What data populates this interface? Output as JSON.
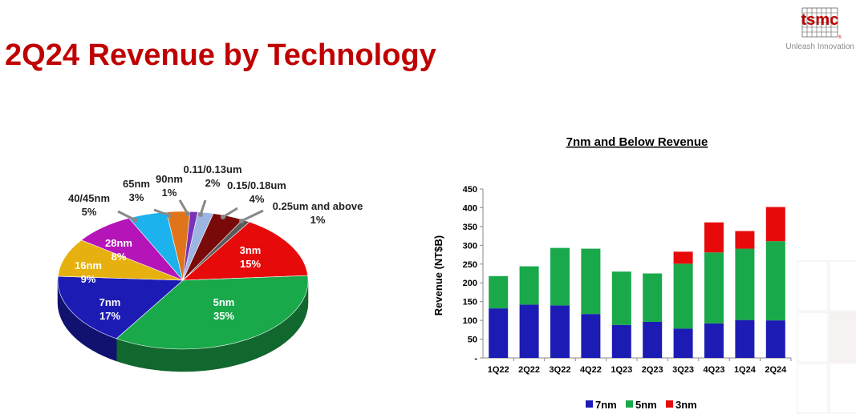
{
  "page": {
    "title": "2Q24 Revenue by Technology",
    "logo_text": "tsmc",
    "tagline": "Unleash Innovation"
  },
  "colors": {
    "title": "#C00000",
    "7nm": "#1C1CB5",
    "5nm": "#19A84A",
    "3nm": "#E60A0A"
  },
  "chart_data": [
    {
      "type": "pie",
      "slices": [
        {
          "label": "3nm",
          "value": 15,
          "value_label": "15%",
          "color": "#E60A0A"
        },
        {
          "label": "5nm",
          "value": 35,
          "value_label": "35%",
          "color": "#19A84A"
        },
        {
          "label": "7nm",
          "value": 17,
          "value_label": "17%",
          "color": "#1C1CB5"
        },
        {
          "label": "16nm",
          "value": 9,
          "value_label": "9%",
          "color": "#E6B10E"
        },
        {
          "label": "28nm",
          "value": 8,
          "value_label": "8%",
          "color": "#B514B8"
        },
        {
          "label": "40/45nm",
          "value": 5,
          "value_label": "5%",
          "color": "#1BB2EE"
        },
        {
          "label": "65nm",
          "value": 3,
          "value_label": "3%",
          "color": "#E0741A"
        },
        {
          "label": "90nm",
          "value": 1,
          "value_label": "1%",
          "color": "#7A33B8"
        },
        {
          "label": "0.11/0.13um",
          "value": 2,
          "value_label": "2%",
          "color": "#9CB5E3"
        },
        {
          "label": "0.15/0.18um",
          "value": 4,
          "value_label": "4%",
          "color": "#7A0A0A"
        },
        {
          "label": "0.25um and above",
          "value": 1,
          "value_label": "1%",
          "color": "#5A5A5A"
        }
      ]
    },
    {
      "type": "bar",
      "stacked": true,
      "title": "7nm and Below Revenue",
      "ylabel": "Revenue (NT$B)",
      "ylim": [
        0,
        450
      ],
      "yticks": [
        "-",
        "50",
        "100",
        "150",
        "200",
        "250",
        "300",
        "350",
        "400",
        "450"
      ],
      "categories": [
        "1Q22",
        "2Q22",
        "3Q22",
        "4Q22",
        "1Q23",
        "2Q23",
        "3Q23",
        "4Q23",
        "1Q24",
        "2Q24"
      ],
      "series": [
        {
          "name": "7nm",
          "color": "#1C1CB5",
          "values": [
            132,
            142,
            140,
            117,
            88,
            96,
            78,
            92,
            101,
            100
          ]
        },
        {
          "name": "5nm",
          "color": "#19A84A",
          "values": [
            86,
            102,
            153,
            174,
            142,
            129,
            173,
            189,
            190,
            211
          ]
        },
        {
          "name": "3nm",
          "color": "#E60A0A",
          "values": [
            0,
            0,
            0,
            0,
            0,
            0,
            32,
            80,
            47,
            91
          ]
        }
      ],
      "legend_position": "bottom",
      "grid": false
    }
  ]
}
